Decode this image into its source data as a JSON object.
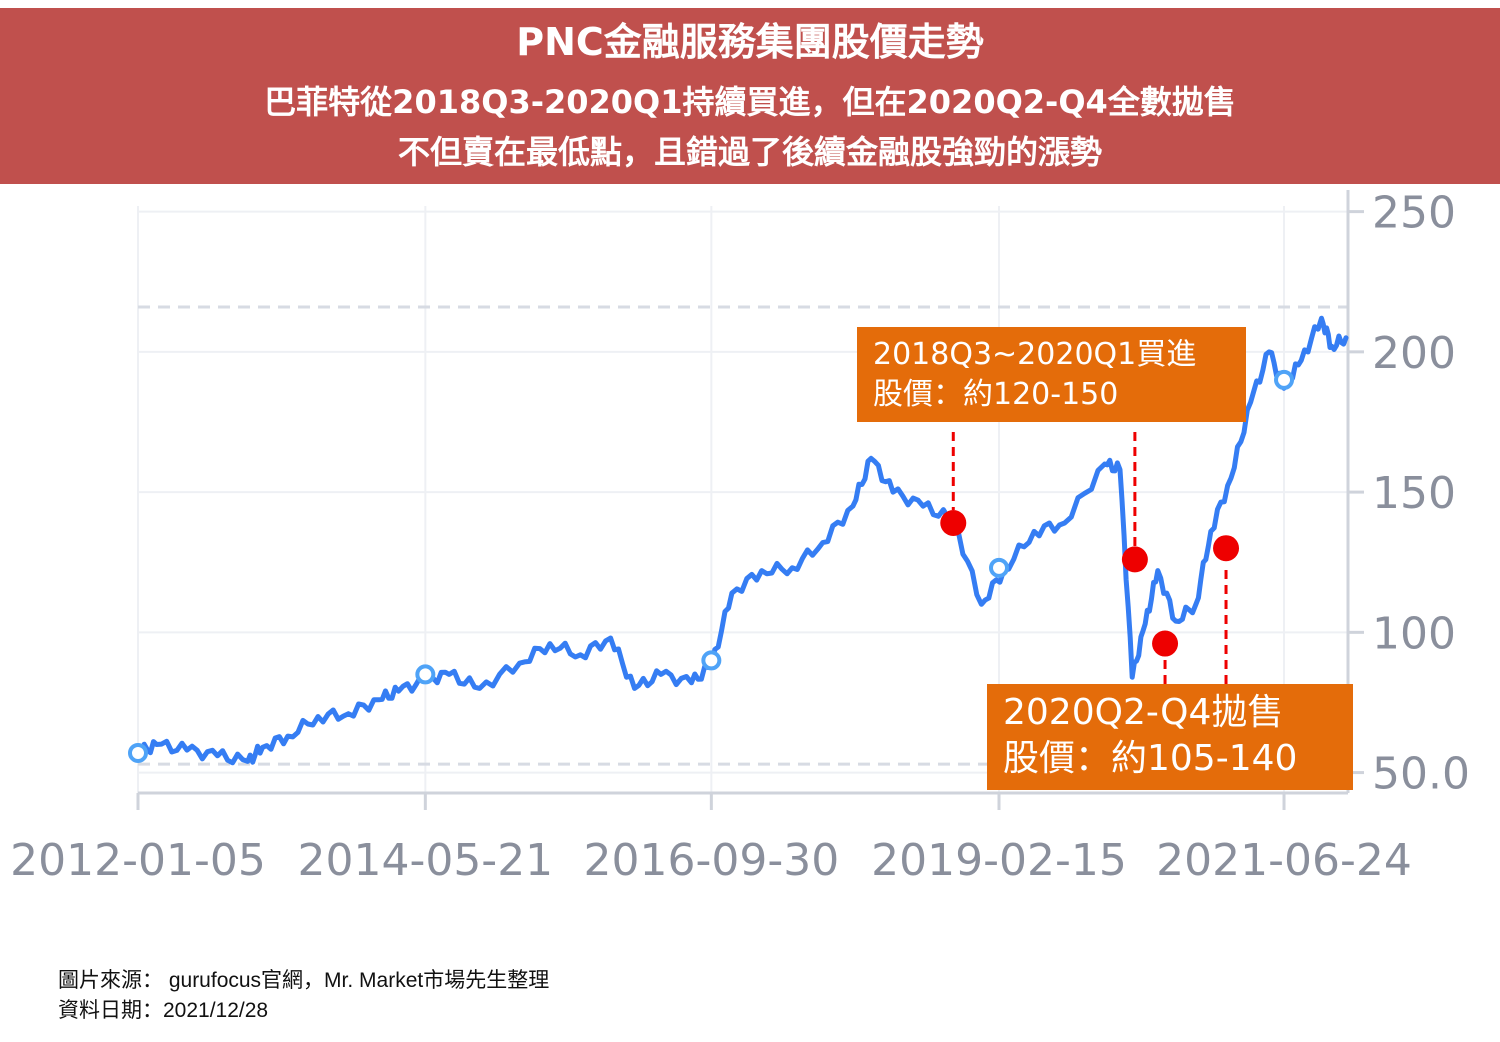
{
  "banner": {
    "title": "PNC金融服務集團股價走勢",
    "subtitle_1": "巴菲特從2018Q3-2020Q1持續買進，但在2020Q2-Q4全數拋售",
    "subtitle_2": "不但賣在最低點，且錯過了後續金融股強勁的漲勢"
  },
  "callouts": {
    "buy": {
      "line1": "2018Q3~2020Q1買進",
      "line2": "股價：約120-150"
    },
    "sell": {
      "line1": "2020Q2-Q4拋售",
      "line2": "股價：約105-140"
    }
  },
  "footer": {
    "source": "圖片來源： gurufocus官網，Mr. Market市場先生整理",
    "date": "資料日期：2021/12/28"
  },
  "colors": {
    "banner": "#c0504d",
    "line": "#1f6ff2",
    "callout": "#e46c0a",
    "marker": "#ee0000",
    "axis_text": "#8a8f9c"
  },
  "chart_data": {
    "type": "line",
    "title": "",
    "xlabel": "",
    "ylabel": "",
    "ylim": [
      47,
      252
    ],
    "yticks": [
      50.0,
      100,
      150,
      200,
      250
    ],
    "ytick_labels": [
      "50.0",
      "100",
      "150",
      "200",
      "250"
    ],
    "x_range": [
      "2012-01-05",
      "2021-12-28"
    ],
    "xtick_labels": [
      "2012-01-05",
      "2014-05-21",
      "2016-09-30",
      "2019-02-15",
      "2021-06-24"
    ],
    "dashed_reference_lines": [
      53,
      216
    ],
    "grid": true,
    "series": [
      {
        "name": "",
        "points": [
          [
            "2012-01-05",
            57
          ],
          [
            "2012-03-01",
            60
          ],
          [
            "2012-06-01",
            58
          ],
          [
            "2012-09-01",
            56
          ],
          [
            "2012-12-01",
            54
          ],
          [
            "2013-01-15",
            59
          ],
          [
            "2013-04-01",
            63
          ],
          [
            "2013-07-01",
            70
          ],
          [
            "2013-10-01",
            71
          ],
          [
            "2014-01-01",
            76
          ],
          [
            "2014-03-01",
            79
          ],
          [
            "2014-05-21",
            83
          ],
          [
            "2014-08-01",
            85
          ],
          [
            "2014-11-01",
            80
          ],
          [
            "2015-03-01",
            89
          ],
          [
            "2015-06-01",
            96
          ],
          [
            "2015-09-01",
            92
          ],
          [
            "2015-12-01",
            98
          ],
          [
            "2016-02-11",
            80
          ],
          [
            "2016-05-01",
            85
          ],
          [
            "2016-08-01",
            82
          ],
          [
            "2016-09-30",
            88
          ],
          [
            "2016-12-01",
            114
          ],
          [
            "2017-03-01",
            122
          ],
          [
            "2017-06-01",
            123
          ],
          [
            "2017-09-01",
            132
          ],
          [
            "2017-12-01",
            145
          ],
          [
            "2018-01-25",
            162
          ],
          [
            "2018-04-01",
            150
          ],
          [
            "2018-07-01",
            145
          ],
          [
            "2018-10-01",
            140
          ],
          [
            "2018-12-24",
            110
          ],
          [
            "2019-03-01",
            122
          ],
          [
            "2019-06-01",
            136
          ],
          [
            "2019-09-01",
            139
          ],
          [
            "2019-12-31",
            160
          ],
          [
            "2020-02-15",
            158
          ],
          [
            "2020-03-23",
            84
          ],
          [
            "2020-05-01",
            103
          ],
          [
            "2020-06-08",
            122
          ],
          [
            "2020-08-01",
            104
          ],
          [
            "2020-10-01",
            110
          ],
          [
            "2020-11-15",
            136
          ],
          [
            "2021-01-15",
            155
          ],
          [
            "2021-03-15",
            182
          ],
          [
            "2021-05-10",
            200
          ],
          [
            "2021-06-24",
            187
          ],
          [
            "2021-08-15",
            197
          ],
          [
            "2021-10-15",
            212
          ],
          [
            "2021-11-15",
            202
          ],
          [
            "2021-12-28",
            205
          ]
        ]
      }
    ],
    "hollow_markers": [
      [
        "2012-01-05",
        57
      ],
      [
        "2014-05-21",
        85
      ],
      [
        "2016-09-30",
        90
      ],
      [
        "2019-02-15",
        123
      ],
      [
        "2021-06-24",
        190
      ]
    ],
    "highlight_markers": [
      [
        "2018-09-30",
        139
      ],
      [
        "2020-03-31",
        126
      ],
      [
        "2020-06-30",
        96
      ],
      [
        "2020-12-31",
        130
      ]
    ]
  }
}
